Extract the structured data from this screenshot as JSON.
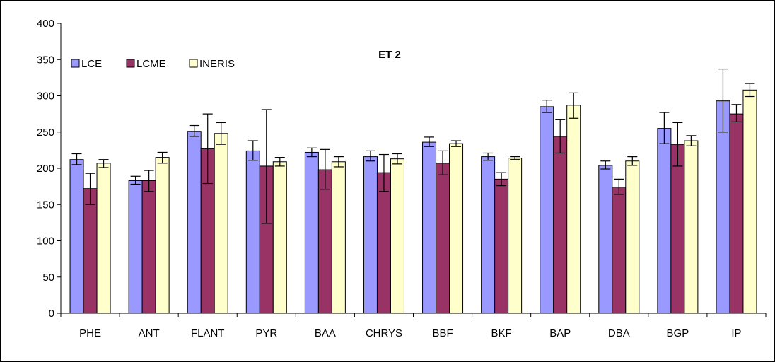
{
  "chart_data": {
    "type": "bar",
    "title": "ET 2",
    "xlabel": "",
    "ylabel": "",
    "ylim": [
      0,
      400
    ],
    "yticks": [
      0,
      50,
      100,
      150,
      200,
      250,
      300,
      350,
      400
    ],
    "grid": false,
    "legend_position": "top-left",
    "categories": [
      "PHE",
      "ANT",
      "FLANT",
      "PYR",
      "BAA",
      "CHRYS",
      "BBF",
      "BKF",
      "BAP",
      "DBA",
      "BGP",
      "IP"
    ],
    "series": [
      {
        "name": "LCE",
        "color": "#9999FF",
        "values": [
          212,
          183,
          251,
          224,
          222,
          216,
          236,
          216,
          285,
          204,
          255,
          293
        ],
        "error_low": [
          205,
          178,
          244,
          211,
          216,
          210,
          230,
          211,
          277,
          199,
          234,
          250
        ],
        "error_high": [
          220,
          189,
          259,
          238,
          228,
          224,
          243,
          221,
          294,
          210,
          277,
          337
        ]
      },
      {
        "name": "LCME",
        "color": "#993366",
        "values": [
          172,
          183,
          227,
          203,
          198,
          194,
          207,
          185,
          244,
          174,
          233,
          275
        ],
        "error_low": [
          150,
          168,
          179,
          124,
          171,
          168,
          191,
          176,
          221,
          164,
          203,
          264
        ],
        "error_high": [
          193,
          197,
          275,
          281,
          226,
          219,
          224,
          194,
          267,
          185,
          263,
          288
        ]
      },
      {
        "name": "INERIS",
        "color": "#FFFFCC",
        "values": [
          207,
          215,
          248,
          209,
          209,
          213,
          234,
          214,
          287,
          210,
          238,
          308
        ],
        "error_low": [
          201,
          207,
          233,
          203,
          202,
          206,
          230,
          212,
          269,
          204,
          231,
          299
        ],
        "error_high": [
          212,
          222,
          263,
          215,
          216,
          220,
          238,
          216,
          304,
          216,
          245,
          317
        ]
      }
    ]
  }
}
